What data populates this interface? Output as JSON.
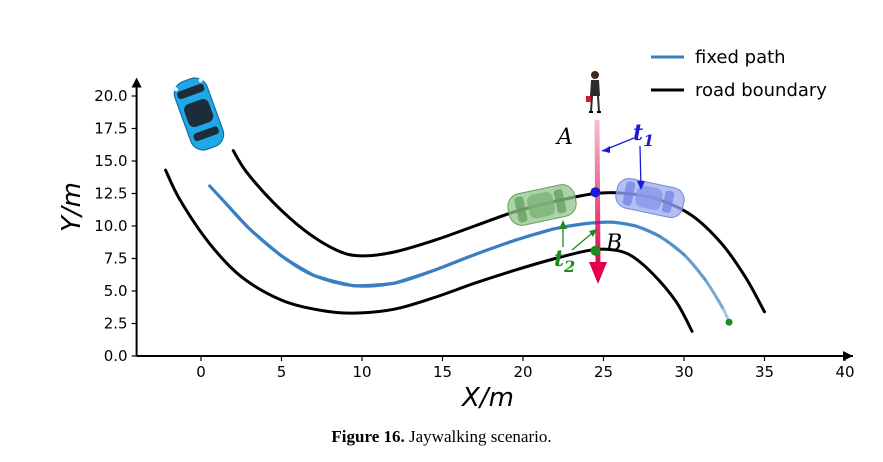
{
  "chart_data": {
    "type": "line",
    "title": "",
    "xlabel": "X/m",
    "ylabel": "Y/m",
    "xlim": [
      -4,
      40
    ],
    "ylim": [
      0,
      20.5
    ],
    "xticks": [
      "0",
      "5",
      "10",
      "15",
      "20",
      "25",
      "30",
      "35",
      "40"
    ],
    "yticks": [
      "0.0",
      "2.5",
      "5.0",
      "7.5",
      "10.0",
      "12.5",
      "15.0",
      "17.5",
      "20.0"
    ],
    "grid": false,
    "legend_position": "top-right",
    "colors": {
      "fixed_path": "#3a7fc1",
      "road_boundary": "#000000",
      "pedestrian_arrow": "#e0004d",
      "point_A": "#1a1adc",
      "point_B": "#1c8a1c",
      "t1": "#1a1adc",
      "t2": "#1c8a1c"
    },
    "series": [
      {
        "name": "fixed path",
        "color": "#3a7fc1",
        "x": [
          0.6,
          1.5,
          3.0,
          5.0,
          7.0,
          9.5,
          12.0,
          14.5,
          17.0,
          19.5,
          22.0,
          24.0,
          25.5,
          27.0,
          28.5,
          30.0,
          31.3,
          32.4,
          32.8
        ],
        "y": [
          13.0,
          11.8,
          9.8,
          7.7,
          6.2,
          5.4,
          5.6,
          6.6,
          7.8,
          8.9,
          9.8,
          10.2,
          10.3,
          10.0,
          9.2,
          7.8,
          5.9,
          3.7,
          2.6
        ]
      },
      {
        "name": "road boundary",
        "color": "#000000",
        "x": [
          2.0,
          2.8,
          4.5,
          6.5,
          8.5,
          10.0,
          12.0,
          14.5,
          17.0,
          19.5,
          22.0,
          24.5,
          26.5,
          28.5,
          30.5,
          32.3,
          33.8,
          35.0
        ],
        "y": [
          15.8,
          14.2,
          11.8,
          9.6,
          8.1,
          7.7,
          8.0,
          8.9,
          10.0,
          11.1,
          11.9,
          12.5,
          12.5,
          12.0,
          10.8,
          8.7,
          6.1,
          3.4
        ]
      },
      {
        "name": "",
        "color": "#000000",
        "x": [
          -2.2,
          -1.3,
          0.5,
          2.5,
          5.0,
          7.5,
          9.5,
          12.0,
          14.5,
          17.0,
          19.5,
          22.0,
          24.0,
          25.3,
          26.6,
          28.0,
          29.5,
          30.5
        ],
        "y": [
          14.3,
          12.0,
          8.7,
          6.1,
          4.3,
          3.5,
          3.3,
          3.6,
          4.5,
          5.6,
          6.6,
          7.5,
          8.1,
          8.2,
          7.8,
          6.4,
          4.2,
          1.9
        ]
      }
    ],
    "annotations": {
      "point_A": {
        "label": "A",
        "x": 24.5,
        "y": 12.6
      },
      "point_B": {
        "label": "B",
        "x": 24.5,
        "y": 8.1
      },
      "end_point": {
        "x": 32.8,
        "y": 2.6
      },
      "t1": {
        "label": "t1"
      },
      "t2": {
        "label": "t2"
      }
    }
  },
  "caption": {
    "figure_label": "Figure 16.",
    "text": " Jaywalking scenario."
  }
}
